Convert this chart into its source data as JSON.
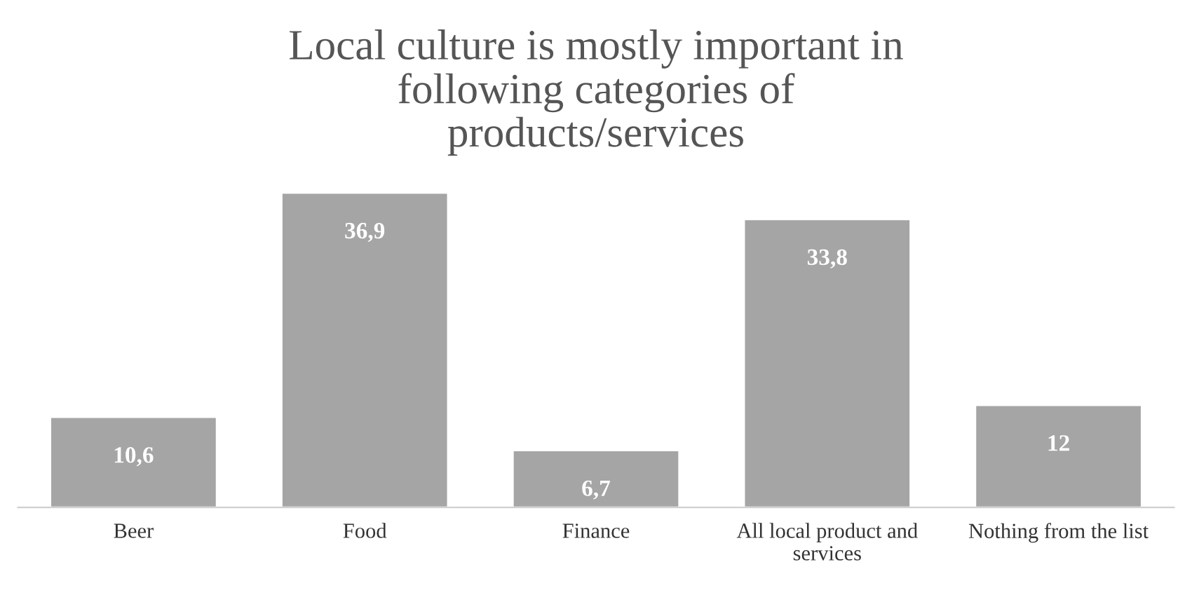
{
  "chart_data": {
    "type": "bar",
    "title": "Local culture is mostly important in following categories of products/services",
    "categories": [
      "Beer",
      "Food",
      "Finance",
      "All local product and services",
      "Nothing from the list"
    ],
    "values": [
      10.6,
      36.9,
      6.7,
      33.8,
      12
    ],
    "value_labels": [
      "10,6",
      "36,9",
      "6,7",
      "33,8",
      "12"
    ],
    "color": "#a5a5a5",
    "grid": false,
    "legend": false
  }
}
